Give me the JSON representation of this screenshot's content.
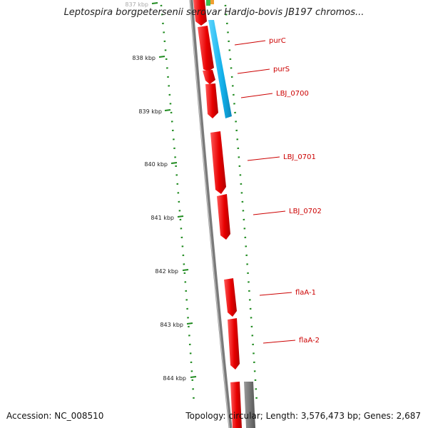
{
  "title": "Leptospira borgpetersenii serovar Hardjo-bovis JB197 chromos...",
  "footer": {
    "accession": "Accession: NC_008510",
    "stats": "Topology: circular; Length: 3,576,473 bp; Genes: 2,687"
  },
  "ruler": {
    "labels": [
      "837 kbp",
      "838 kbp",
      "839 kbp",
      "840 kbp",
      "841 kbp",
      "842 kbp",
      "843 kbp",
      "844 kbp"
    ]
  },
  "genes": [
    {
      "name": "purC"
    },
    {
      "name": "purS"
    },
    {
      "name": "LBJ_0700"
    },
    {
      "name": "LBJ_0701"
    },
    {
      "name": "LBJ_0702"
    },
    {
      "name": "flaA-1"
    },
    {
      "name": "flaA-2"
    }
  ],
  "colors": {
    "gene": "#ee0000",
    "gene_highlight": "#ff6a6a",
    "cds_blue": "#19b7ee",
    "backbone": "#7a7a7a",
    "tick": "#1e8a1e",
    "label": "#cc0000",
    "gray_feature": "#6f6f6f"
  }
}
